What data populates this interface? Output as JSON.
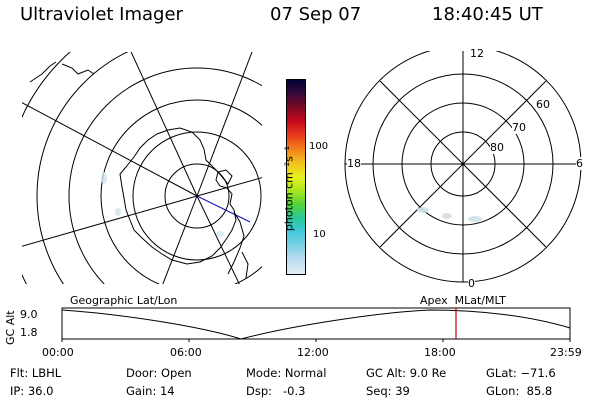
{
  "header": {
    "instrument": "Ultraviolet Imager",
    "date": "07 Sep 07",
    "time": "18:40:45 UT"
  },
  "polar_plot": {
    "mlt_labels": [
      "12",
      "18",
      "6",
      "0"
    ],
    "mlat_labels": [
      "60",
      "70",
      "80"
    ]
  },
  "color_scale": {
    "unit_label": "photon cm⁻²s⁻¹",
    "ticks": [
      "100",
      "10"
    ],
    "colors": [
      "#000033",
      "#3a0b3b",
      "#7a0a20",
      "#c80a1e",
      "#e63c1c",
      "#f4821c",
      "#f0c31c",
      "#eaf01e",
      "#a8e61e",
      "#50d23c",
      "#28c8a0",
      "#46c8dc",
      "#82d2e6",
      "#bcdcf0",
      "#e6eef6"
    ]
  },
  "timeline": {
    "left_title": "Geographic Lat/Lon",
    "right_title": "Apex  MLat/MLT",
    "ylabel": "GC Alt",
    "yticks": [
      "9.0",
      "1.8"
    ],
    "xticks": [
      "00:00",
      "06:00",
      "12:00",
      "18:00",
      "23:59"
    ],
    "current_marker_time": "18:40",
    "marker_color": "#c00000"
  },
  "info": {
    "flt": "Flt: LBHL",
    "ip": "IP: 36.0",
    "door": "Door: Open",
    "gain": "Gain: 14",
    "mode": "Mode: Normal",
    "dsp": "Dsp:   -0.3",
    "gc_alt": "GC Alt: 9.0 Re",
    "seq": "Seq: 39",
    "glat": "GLat: −71.6",
    "glon": "GLon:  85.8"
  }
}
